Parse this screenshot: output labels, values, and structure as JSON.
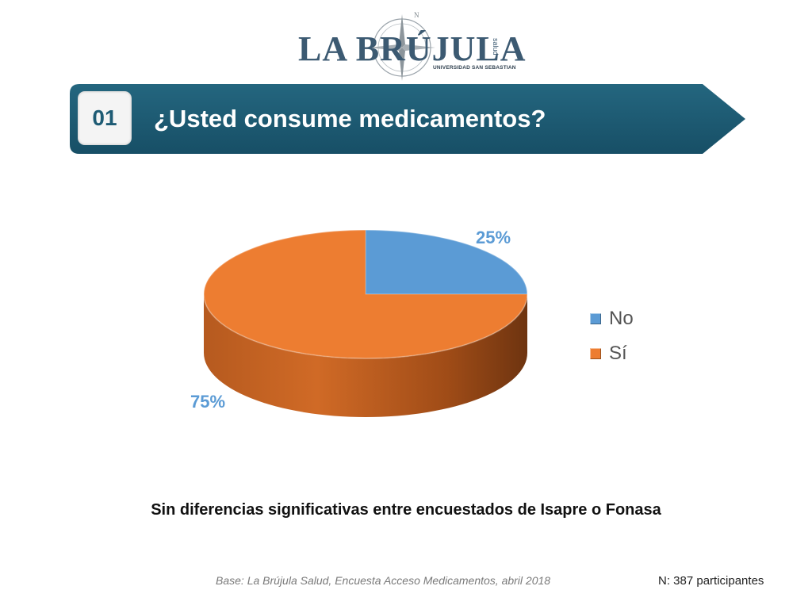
{
  "logo": {
    "name": "LA BRÚJULA",
    "side_text": "salud",
    "subtitle": "UNIVERSIDAD SAN SEBASTIAN"
  },
  "header": {
    "number": "01",
    "question": "¿Usted consume medicamentos?",
    "color": "#1e5b74"
  },
  "chart_data": {
    "type": "pie",
    "categories": [
      "No",
      "Sí"
    ],
    "values": [
      25,
      75
    ],
    "data_labels": [
      "25%",
      "75%"
    ],
    "colors": [
      "#5b9bd5",
      "#ed7d31"
    ],
    "legend_position": "right"
  },
  "note": "Sin diferencias significativas entre encuestados de Isapre o Fonasa",
  "source": "Base: La Brújula Salud, Encuesta Acceso Medicamentos, abril 2018",
  "sample": "N: 387 participantes"
}
